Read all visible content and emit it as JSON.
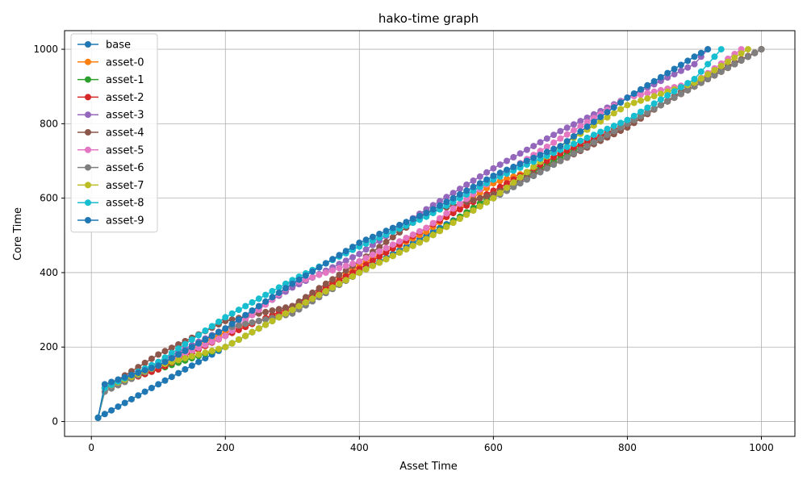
{
  "chart_data": {
    "type": "line",
    "title": "hako-time graph",
    "xlabel": "Asset Time",
    "ylabel": "Core Time",
    "xlim": [
      -40,
      1050
    ],
    "ylim": [
      -40,
      1050
    ],
    "xticks": [
      0,
      200,
      400,
      600,
      800,
      1000
    ],
    "yticks": [
      0,
      200,
      400,
      600,
      800,
      1000
    ],
    "grid": true,
    "legend_position": "top-left",
    "marker": "circle",
    "series": [
      {
        "name": "base",
        "color": "#1f77b4",
        "x": [
          10,
          20,
          1000
        ],
        "y": [
          10,
          20,
          1000
        ]
      },
      {
        "name": "asset-0",
        "color": "#ff7f0e",
        "x": [
          10,
          20,
          100,
          200,
          300,
          400,
          500,
          600,
          700,
          800,
          900,
          1000
        ],
        "y": [
          10,
          90,
          150,
          240,
          300,
          420,
          510,
          640,
          700,
          800,
          900,
          1000
        ]
      },
      {
        "name": "asset-1",
        "color": "#2ca02c",
        "x": [
          10,
          20,
          100,
          200,
          300,
          400,
          500,
          600,
          700,
          800,
          900,
          1000
        ],
        "y": [
          10,
          90,
          140,
          200,
          300,
          400,
          490,
          610,
          710,
          800,
          900,
          1000
        ]
      },
      {
        "name": "asset-2",
        "color": "#d62728",
        "x": [
          10,
          20,
          100,
          200,
          300,
          400,
          500,
          600,
          700,
          800,
          900,
          1000
        ],
        "y": [
          10,
          90,
          140,
          230,
          310,
          410,
          520,
          620,
          720,
          800,
          900,
          1000
        ]
      },
      {
        "name": "asset-3",
        "color": "#9467bd",
        "x": [
          10,
          20,
          100,
          200,
          300,
          400,
          500,
          600,
          700,
          800,
          900,
          920
        ],
        "y": [
          10,
          90,
          160,
          250,
          360,
          450,
          570,
          680,
          780,
          870,
          960,
          1000
        ]
      },
      {
        "name": "asset-4",
        "color": "#8c564b",
        "x": [
          10,
          20,
          100,
          200,
          300,
          400,
          500,
          600,
          700,
          800,
          900,
          1000
        ],
        "y": [
          10,
          90,
          180,
          270,
          310,
          430,
          560,
          610,
          700,
          790,
          910,
          1000
        ]
      },
      {
        "name": "asset-5",
        "color": "#e377c2",
        "x": [
          10,
          20,
          100,
          200,
          300,
          400,
          500,
          600,
          700,
          800,
          900,
          970
        ],
        "y": [
          10,
          90,
          150,
          230,
          370,
          430,
          520,
          650,
          760,
          870,
          910,
          1000
        ]
      },
      {
        "name": "asset-6",
        "color": "#7f7f7f",
        "x": [
          10,
          20,
          100,
          200,
          300,
          400,
          500,
          600,
          700,
          800,
          900,
          1000
        ],
        "y": [
          10,
          80,
          150,
          250,
          290,
          400,
          490,
          600,
          700,
          800,
          900,
          1000
        ]
      },
      {
        "name": "asset-7",
        "color": "#bcbd22",
        "x": [
          10,
          20,
          100,
          200,
          300,
          400,
          500,
          600,
          700,
          800,
          900,
          980
        ],
        "y": [
          10,
          90,
          150,
          200,
          300,
          400,
          490,
          600,
          740,
          850,
          910,
          1000
        ]
      },
      {
        "name": "asset-8",
        "color": "#17becf",
        "x": [
          10,
          20,
          100,
          200,
          300,
          400,
          500,
          600,
          700,
          800,
          900,
          940
        ],
        "y": [
          10,
          90,
          160,
          280,
          380,
          470,
          550,
          650,
          730,
          810,
          920,
          1000
        ]
      },
      {
        "name": "asset-9",
        "color": "#1f77b4",
        "x": [
          10,
          20,
          100,
          200,
          300,
          400,
          500,
          600,
          700,
          800,
          900,
          920
        ],
        "y": [
          10,
          100,
          150,
          250,
          370,
          480,
          560,
          660,
          740,
          870,
          980,
          1000
        ]
      }
    ]
  }
}
